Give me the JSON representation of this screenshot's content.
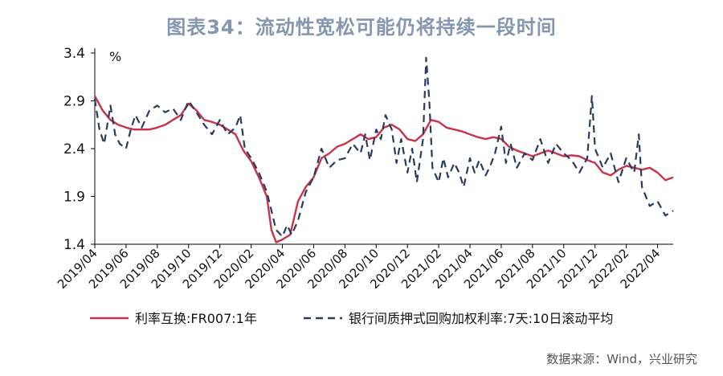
{
  "title": "图表34：流动性宽松可能仍将持续一段时间",
  "source": "数据来源：Wind，兴业研究",
  "chart_data": {
    "type": "line",
    "ylabel": "%",
    "ylim": [
      1.4,
      3.4
    ],
    "yticks": [
      "1.4",
      "1.9",
      "2.4",
      "2.9",
      "3.4"
    ],
    "x_tick_labels": [
      "2019/04",
      "2019/06",
      "2019/08",
      "2019/10",
      "2019/12",
      "2020/02",
      "2020/04",
      "2020/06",
      "2020/08",
      "2020/10",
      "2020/12",
      "2021/02",
      "2021/04",
      "2021/06",
      "2021/08",
      "2021/10",
      "2021/12",
      "2022/02",
      "2022/04"
    ],
    "x_start": "2019/04",
    "x_end": "2022/05",
    "legend_position": "bottom",
    "series": [
      {
        "name": "利率互换:FR007:1年",
        "color": "#c8334a",
        "style": "solid",
        "points": [
          [
            "2019/04",
            2.95
          ],
          [
            "2019/04.5",
            2.8
          ],
          [
            "2019/05",
            2.7
          ],
          [
            "2019/05.5",
            2.65
          ],
          [
            "2019/06",
            2.62
          ],
          [
            "2019/06.5",
            2.6
          ],
          [
            "2019/07",
            2.6
          ],
          [
            "2019/07.5",
            2.6
          ],
          [
            "2019/08",
            2.62
          ],
          [
            "2019/08.5",
            2.65
          ],
          [
            "2019/09",
            2.7
          ],
          [
            "2019/09.5",
            2.75
          ],
          [
            "2019/10",
            2.87
          ],
          [
            "2019/10.5",
            2.8
          ],
          [
            "2019/11",
            2.7
          ],
          [
            "2019/11.5",
            2.68
          ],
          [
            "2019/12",
            2.65
          ],
          [
            "2019/12.5",
            2.6
          ],
          [
            "2020/01",
            2.55
          ],
          [
            "2020/01.5",
            2.38
          ],
          [
            "2020/02",
            2.27
          ],
          [
            "2020/02.5",
            2.1
          ],
          [
            "2020/03",
            1.9
          ],
          [
            "2020/03.3",
            1.55
          ],
          [
            "2020/03.6",
            1.42
          ],
          [
            "2020/04",
            1.45
          ],
          [
            "2020/04.5",
            1.5
          ],
          [
            "2020/05",
            1.85
          ],
          [
            "2020/05.5",
            2.0
          ],
          [
            "2020/06",
            2.1
          ],
          [
            "2020/06.5",
            2.3
          ],
          [
            "2020/07",
            2.35
          ],
          [
            "2020/07.5",
            2.42
          ],
          [
            "2020/08",
            2.45
          ],
          [
            "2020/08.5",
            2.5
          ],
          [
            "2020/09",
            2.55
          ],
          [
            "2020/09.5",
            2.5
          ],
          [
            "2020/10",
            2.52
          ],
          [
            "2020/10.5",
            2.62
          ],
          [
            "2020/11",
            2.65
          ],
          [
            "2020/11.5",
            2.6
          ],
          [
            "2020/12",
            2.5
          ],
          [
            "2020/12.5",
            2.48
          ],
          [
            "2021/01",
            2.55
          ],
          [
            "2021/01.5",
            2.7
          ],
          [
            "2021/02",
            2.68
          ],
          [
            "2021/02.5",
            2.62
          ],
          [
            "2021/03",
            2.6
          ],
          [
            "2021/03.5",
            2.58
          ],
          [
            "2021/04",
            2.55
          ],
          [
            "2021/04.5",
            2.52
          ],
          [
            "2021/05",
            2.5
          ],
          [
            "2021/05.5",
            2.52
          ],
          [
            "2021/06",
            2.5
          ],
          [
            "2021/06.5",
            2.42
          ],
          [
            "2021/07",
            2.38
          ],
          [
            "2021/07.5",
            2.35
          ],
          [
            "2021/08",
            2.32
          ],
          [
            "2021/08.5",
            2.35
          ],
          [
            "2021/09",
            2.38
          ],
          [
            "2021/09.5",
            2.35
          ],
          [
            "2021/10",
            2.32
          ],
          [
            "2021/10.5",
            2.33
          ],
          [
            "2021/11",
            2.32
          ],
          [
            "2021/11.5",
            2.28
          ],
          [
            "2021/12",
            2.25
          ],
          [
            "2021/12.5",
            2.15
          ],
          [
            "2022/01",
            2.12
          ],
          [
            "2022/01.5",
            2.18
          ],
          [
            "2022/02",
            2.22
          ],
          [
            "2022/02.5",
            2.2
          ],
          [
            "2022/03",
            2.18
          ],
          [
            "2022/03.5",
            2.2
          ],
          [
            "2022/04",
            2.15
          ],
          [
            "2022/04.5",
            2.07
          ],
          [
            "2022/05",
            2.1
          ]
        ]
      },
      {
        "name": "银行间质押式回购加权利率:7天:10日滚动平均",
        "color": "#2a3b5c",
        "style": "dashed",
        "points": [
          [
            "2019/04",
            2.92
          ],
          [
            "2019/04.3",
            2.6
          ],
          [
            "2019/04.6",
            2.45
          ],
          [
            "2019/05",
            2.85
          ],
          [
            "2019/05.3",
            2.55
          ],
          [
            "2019/05.6",
            2.45
          ],
          [
            "2019/06",
            2.4
          ],
          [
            "2019/06.3",
            2.6
          ],
          [
            "2019/06.6",
            2.75
          ],
          [
            "2019/07",
            2.62
          ],
          [
            "2019/07.5",
            2.8
          ],
          [
            "2019/08",
            2.85
          ],
          [
            "2019/08.5",
            2.78
          ],
          [
            "2019/09",
            2.82
          ],
          [
            "2019/09.5",
            2.7
          ],
          [
            "2019/10",
            2.9
          ],
          [
            "2019/10.5",
            2.78
          ],
          [
            "2019/11",
            2.65
          ],
          [
            "2019/11.5",
            2.55
          ],
          [
            "2019/12",
            2.7
          ],
          [
            "2019/12.5",
            2.55
          ],
          [
            "2020/01",
            2.62
          ],
          [
            "2020/01.3",
            2.75
          ],
          [
            "2020/01.6",
            2.4
          ],
          [
            "2020/02",
            2.3
          ],
          [
            "2020/02.5",
            2.15
          ],
          [
            "2020/03",
            1.95
          ],
          [
            "2020/03.3",
            1.75
          ],
          [
            "2020/03.6",
            1.55
          ],
          [
            "2020/04",
            1.48
          ],
          [
            "2020/04.3",
            1.6
          ],
          [
            "2020/04.6",
            1.5
          ],
          [
            "2020/05",
            1.65
          ],
          [
            "2020/05.5",
            1.95
          ],
          [
            "2020/06",
            2.1
          ],
          [
            "2020/06.5",
            2.4
          ],
          [
            "2020/07",
            2.2
          ],
          [
            "2020/07.5",
            2.28
          ],
          [
            "2020/08",
            2.3
          ],
          [
            "2020/08.5",
            2.45
          ],
          [
            "2020/09",
            2.35
          ],
          [
            "2020/09.3",
            2.55
          ],
          [
            "2020/09.6",
            2.28
          ],
          [
            "2020/10",
            2.6
          ],
          [
            "2020/10.3",
            2.5
          ],
          [
            "2020/10.6",
            2.75
          ],
          [
            "2020/11",
            2.6
          ],
          [
            "2020/11.3",
            2.25
          ],
          [
            "2020/11.6",
            2.5
          ],
          [
            "2020/12",
            2.15
          ],
          [
            "2020/12.3",
            2.4
          ],
          [
            "2020/12.6",
            2.05
          ],
          [
            "2021/01",
            2.5
          ],
          [
            "2021/01.2",
            3.35
          ],
          [
            "2021/01.4",
            2.9
          ],
          [
            "2021/01.6",
            2.2
          ],
          [
            "2021/02",
            2.05
          ],
          [
            "2021/02.3",
            2.3
          ],
          [
            "2021/02.6",
            2.1
          ],
          [
            "2021/03",
            2.25
          ],
          [
            "2021/03.3",
            2.15
          ],
          [
            "2021/03.6",
            2.0
          ],
          [
            "2021/04",
            2.3
          ],
          [
            "2021/04.3",
            2.15
          ],
          [
            "2021/04.6",
            2.28
          ],
          [
            "2021/05",
            2.12
          ],
          [
            "2021/05.3",
            2.22
          ],
          [
            "2021/05.6",
            2.35
          ],
          [
            "2021/06",
            2.63
          ],
          [
            "2021/06.3",
            2.25
          ],
          [
            "2021/06.6",
            2.45
          ],
          [
            "2021/07",
            2.2
          ],
          [
            "2021/07.5",
            2.35
          ],
          [
            "2021/08",
            2.28
          ],
          [
            "2021/08.5",
            2.5
          ],
          [
            "2021/09",
            2.25
          ],
          [
            "2021/09.5",
            2.45
          ],
          [
            "2021/10",
            2.35
          ],
          [
            "2021/10.5",
            2.28
          ],
          [
            "2021/11",
            2.15
          ],
          [
            "2021/11.5",
            2.3
          ],
          [
            "2021/11.8",
            2.95
          ],
          [
            "2021/12",
            2.4
          ],
          [
            "2021/12.5",
            2.2
          ],
          [
            "2022/01",
            2.35
          ],
          [
            "2022/01.5",
            2.05
          ],
          [
            "2022/02",
            2.3
          ],
          [
            "2022/02.5",
            2.15
          ],
          [
            "2022/02.8",
            2.55
          ],
          [
            "2022/03",
            2.0
          ],
          [
            "2022/03.5",
            1.8
          ],
          [
            "2022/04",
            1.85
          ],
          [
            "2022/04.5",
            1.7
          ],
          [
            "2022/05",
            1.75
          ]
        ]
      }
    ]
  }
}
